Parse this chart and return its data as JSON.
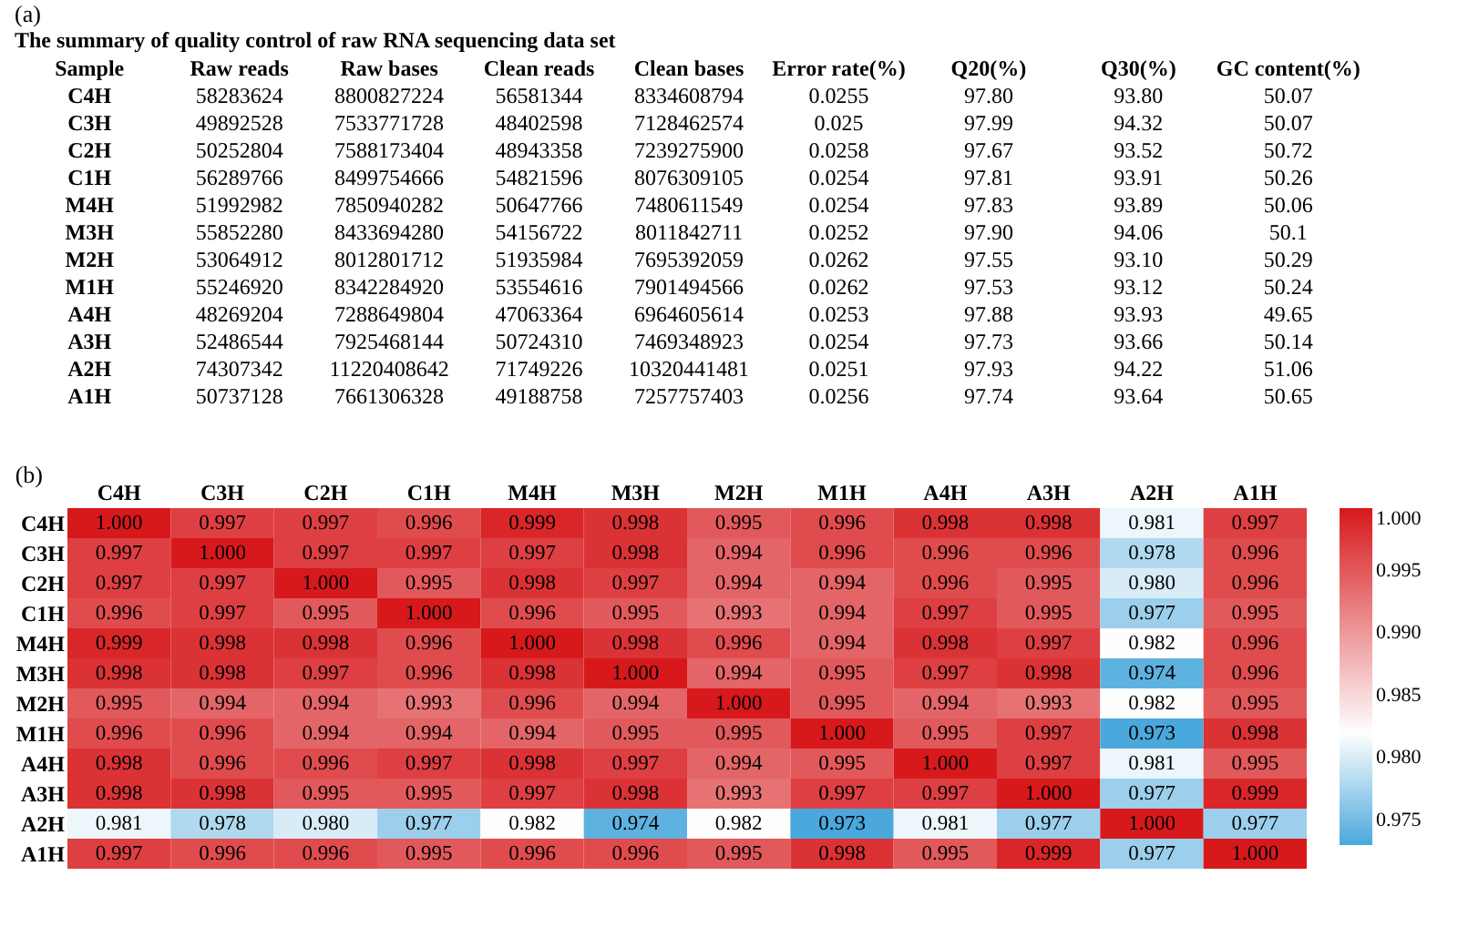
{
  "chart_data": [
    {
      "type": "other",
      "title": "(a)",
      "subtitle": "The summary of quality control of raw RNA sequencing data set",
      "categories": [
        "Sample",
        "Raw reads",
        "Raw bases",
        "Clean reads",
        "Clean bases",
        "Error rate(%)",
        "Q20(%)",
        "Q30(%)",
        "GC content(%)"
      ],
      "annotations": [
        "C4H",
        "58283624",
        "8800827224",
        "56581344",
        "8334608794",
        "0.0255",
        "97.80",
        "93.80",
        "50.07",
        "C3H",
        "49892528",
        "7533771728",
        "48402598",
        "7128462574",
        "0.025",
        "97.99",
        "94.32",
        "50.07",
        "C2H",
        "50252804",
        "7588173404",
        "48943358",
        "7239275900",
        "0.0258",
        "97.67",
        "93.52",
        "50.72",
        "C1H",
        "56289766",
        "8499754666",
        "54821596",
        "8076309105",
        "0.0254",
        "97.81",
        "93.91",
        "50.26",
        "M4H",
        "51992982",
        "7850940282",
        "50647766",
        "7480611549",
        "0.0254",
        "97.83",
        "93.89",
        "50.06",
        "M3H",
        "55852280",
        "8433694280",
        "54156722",
        "8011842711",
        "0.0252",
        "97.90",
        "94.06",
        "50.1",
        "M2H",
        "53064912",
        "8012801712",
        "51935984",
        "7695392059",
        "0.0262",
        "97.55",
        "93.10",
        "50.29",
        "M1H",
        "55246920",
        "8342284920",
        "53554616",
        "7901494566",
        "0.0262",
        "97.53",
        "93.12",
        "50.24",
        "A4H",
        "48269204",
        "7288649804",
        "47063364",
        "6964605614",
        "0.0253",
        "97.88",
        "93.93",
        "49.65",
        "A3H",
        "52486544",
        "7925468144",
        "50724310",
        "7469348923",
        "0.0254",
        "97.73",
        "93.66",
        "50.14",
        "A2H",
        "74307342",
        "11220408642",
        "71749226",
        "10320441481",
        "0.0251",
        "97.93",
        "94.22",
        "51.06",
        "A1H",
        "50737128",
        "7661306328",
        "49188758",
        "7257757403",
        "0.0256",
        "97.74",
        "93.64",
        "50.65"
      ]
    },
    {
      "type": "heatmap",
      "title": "(b)",
      "categories": [
        "C4H",
        "C3H",
        "C2H",
        "C1H",
        "M4H",
        "M3H",
        "M2H",
        "M1H",
        "A4H",
        "A3H",
        "A2H",
        "A1H"
      ],
      "y_categories": [
        "C4H",
        "C3H",
        "C2H",
        "C1H",
        "M4H",
        "M3H",
        "M2H",
        "M1H",
        "A4H",
        "A3H",
        "A2H",
        "A1H"
      ],
      "cells": [
        [
          1.0,
          0.997,
          0.997,
          0.996,
          0.999,
          0.998,
          0.995,
          0.996,
          0.998,
          0.998,
          0.981,
          0.997
        ],
        [
          0.997,
          1.0,
          0.997,
          0.997,
          0.997,
          0.998,
          0.994,
          0.996,
          0.996,
          0.996,
          0.978,
          0.996
        ],
        [
          0.997,
          0.997,
          1.0,
          0.995,
          0.998,
          0.997,
          0.994,
          0.994,
          0.996,
          0.995,
          0.98,
          0.996
        ],
        [
          0.996,
          0.997,
          0.995,
          1.0,
          0.996,
          0.995,
          0.993,
          0.994,
          0.997,
          0.995,
          0.977,
          0.995
        ],
        [
          0.999,
          0.998,
          0.998,
          0.996,
          1.0,
          0.998,
          0.996,
          0.994,
          0.998,
          0.997,
          0.982,
          0.996
        ],
        [
          0.998,
          0.998,
          0.997,
          0.996,
          0.998,
          1.0,
          0.994,
          0.995,
          0.997,
          0.998,
          0.974,
          0.996
        ],
        [
          0.995,
          0.994,
          0.994,
          0.993,
          0.996,
          0.994,
          1.0,
          0.995,
          0.994,
          0.993,
          0.982,
          0.995
        ],
        [
          0.996,
          0.996,
          0.994,
          0.994,
          0.994,
          0.995,
          0.995,
          1.0,
          0.995,
          0.997,
          0.973,
          0.998
        ],
        [
          0.998,
          0.996,
          0.996,
          0.997,
          0.998,
          0.997,
          0.994,
          0.995,
          1.0,
          0.997,
          0.981,
          0.995
        ],
        [
          0.998,
          0.998,
          0.995,
          0.995,
          0.997,
          0.998,
          0.993,
          0.997,
          0.997,
          1.0,
          0.977,
          0.999
        ],
        [
          0.981,
          0.978,
          0.98,
          0.977,
          0.982,
          0.974,
          0.982,
          0.973,
          0.981,
          0.977,
          1.0,
          0.977
        ],
        [
          0.997,
          0.996,
          0.996,
          0.995,
          0.996,
          0.996,
          0.995,
          0.998,
          0.995,
          0.999,
          0.977,
          1.0
        ]
      ],
      "cell_labels": [
        [
          "1.000",
          "0.997",
          "0.997",
          "0.996",
          "0.999",
          "0.998",
          "0.995",
          "0.996",
          "0.998",
          "0.998",
          "0.981",
          "0.997"
        ],
        [
          "0.997",
          "1.000",
          "0.997",
          "0.997",
          "0.997",
          "0.998",
          "0.994",
          "0.996",
          "0.996",
          "0.996",
          "0.978",
          "0.996"
        ],
        [
          "0.997",
          "0.997",
          "1.000",
          "0.995",
          "0.998",
          "0.997",
          "0.994",
          "0.994",
          "0.996",
          "0.995",
          "0.980",
          "0.996"
        ],
        [
          "0.996",
          "0.997",
          "0.995",
          "1.000",
          "0.996",
          "0.995",
          "0.993",
          "0.994",
          "0.997",
          "0.995",
          "0.977",
          "0.995"
        ],
        [
          "0.999",
          "0.998",
          "0.998",
          "0.996",
          "1.000",
          "0.998",
          "0.996",
          "0.994",
          "0.998",
          "0.997",
          "0.982",
          "0.996"
        ],
        [
          "0.998",
          "0.998",
          "0.997",
          "0.996",
          "0.998",
          "1.000",
          "0.994",
          "0.995",
          "0.997",
          "0.998",
          "0.974",
          "0.996"
        ],
        [
          "0.995",
          "0.994",
          "0.994",
          "0.993",
          "0.996",
          "0.994",
          "1.000",
          "0.995",
          "0.994",
          "0.993",
          "0.982",
          "0.995"
        ],
        [
          "0.996",
          "0.996",
          "0.994",
          "0.994",
          "0.994",
          "0.995",
          "0.995",
          "1.000",
          "0.995",
          "0.997",
          "0.973",
          "0.998"
        ],
        [
          "0.998",
          "0.996",
          "0.996",
          "0.997",
          "0.998",
          "0.997",
          "0.994",
          "0.995",
          "1.000",
          "0.997",
          "0.981",
          "0.995"
        ],
        [
          "0.998",
          "0.998",
          "0.995",
          "0.995",
          "0.997",
          "0.998",
          "0.993",
          "0.997",
          "0.997",
          "1.000",
          "0.977",
          "0.999"
        ],
        [
          "0.981",
          "0.978",
          "0.980",
          "0.977",
          "0.982",
          "0.974",
          "0.982",
          "0.973",
          "0.981",
          "0.977",
          "1.000",
          "0.977"
        ],
        [
          "0.997",
          "0.996",
          "0.996",
          "0.995",
          "0.996",
          "0.996",
          "0.995",
          "0.998",
          "0.995",
          "0.999",
          "0.977",
          "1.000"
        ]
      ],
      "clim": [
        0.973,
        1.0
      ],
      "cticks": [
        {
          "value": 0.975,
          "label": "0.975"
        },
        {
          "value": 0.98,
          "label": "0.980"
        },
        {
          "value": 0.985,
          "label": "0.985"
        },
        {
          "value": 0.99,
          "label": "0.990"
        },
        {
          "value": 0.995,
          "label": "0.995"
        },
        {
          "value": 1.0,
          "label": "1.000"
        }
      ],
      "data_labels": true
    }
  ]
}
